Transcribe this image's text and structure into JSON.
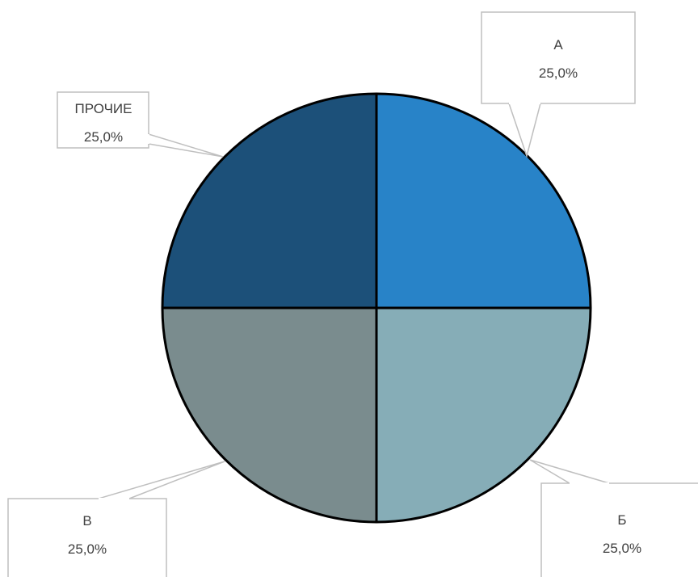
{
  "chart_data": {
    "type": "pie",
    "title": "",
    "categories": [
      "А",
      "Б",
      "В",
      "ПРОЧИЕ"
    ],
    "values": [
      25.0,
      25.0,
      25.0,
      25.0
    ],
    "labels": [
      {
        "category": "А",
        "text": "25,0%"
      },
      {
        "category": "Б",
        "text": "25,0%"
      },
      {
        "category": "В",
        "text": "25,0%"
      },
      {
        "category": "ПРОЧИЕ",
        "text": "25,0%"
      }
    ],
    "colors": [
      "#2883c8",
      "#86adb7",
      "#7a8c8e",
      "#1c5079"
    ],
    "start_angle_deg": 0,
    "direction": "clockwise",
    "legend": "none",
    "data_label_style": "callout"
  }
}
